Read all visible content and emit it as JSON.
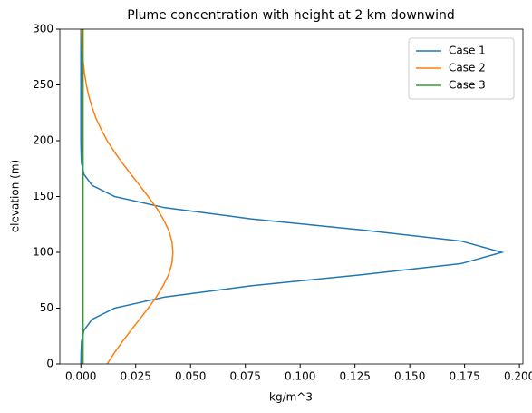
{
  "chart_data": {
    "type": "line",
    "title": "Plume concentration with height at 2 km downwind",
    "x_label": "kg/m^3",
    "y_label": "elevation (m)",
    "y": [
      0,
      10,
      20,
      30,
      40,
      50,
      60,
      70,
      80,
      90,
      100,
      110,
      120,
      130,
      140,
      150,
      160,
      170,
      180,
      190,
      200,
      210,
      220,
      230,
      240,
      250,
      260,
      270,
      280,
      290,
      300
    ],
    "series": [
      {
        "name": "Case 1",
        "color": "#1f77b4",
        "values": [
          0,
          0.0001,
          0.0003,
          0.0014,
          0.0051,
          0.0154,
          0.0383,
          0.0775,
          0.1283,
          0.1736,
          0.192,
          0.1736,
          0.1283,
          0.0775,
          0.0383,
          0.0154,
          0.0051,
          0.0014,
          0.0003,
          0.0001,
          0,
          0,
          0,
          0,
          0,
          0,
          0,
          0,
          0,
          0,
          0
        ]
      },
      {
        "name": "Case 2",
        "color": "#ff7f0e",
        "values": [
          0.012,
          0.0153,
          0.0189,
          0.0228,
          0.0268,
          0.0307,
          0.0344,
          0.0375,
          0.04,
          0.0415,
          0.042,
          0.0415,
          0.04,
          0.0375,
          0.0344,
          0.0307,
          0.0268,
          0.0228,
          0.0189,
          0.0153,
          0.012,
          0.0093,
          0.0069,
          0.0051,
          0.0036,
          0.0025,
          0.0017,
          0.0011,
          0.0007,
          0.0005,
          0.0003
        ]
      },
      {
        "name": "Case 3",
        "color": "#2ca02c",
        "values": [
          0.001,
          0.001,
          0.001,
          0.001,
          0.001,
          0.001,
          0.001,
          0.001,
          0.001,
          0.001,
          0.001,
          0.001,
          0.001,
          0.001,
          0.001,
          0.001,
          0.001,
          0.001,
          0.001,
          0.001,
          0.001,
          0.001,
          0.001,
          0.001,
          0.001,
          0.001,
          0.001,
          0.001,
          0.001,
          0.001,
          0.001
        ]
      }
    ],
    "xlim": [
      -0.0096,
      0.2016
    ],
    "xticks": [
      {
        "value": 0,
        "label": "0.000"
      },
      {
        "value": 0.025,
        "label": "0.025"
      },
      {
        "value": 0.05,
        "label": "0.050"
      },
      {
        "value": 0.075,
        "label": "0.075"
      },
      {
        "value": 0.1,
        "label": "0.100"
      },
      {
        "value": 0.125,
        "label": "0.125"
      },
      {
        "value": 0.15,
        "label": "0.150"
      },
      {
        "value": 0.175,
        "label": "0.175"
      },
      {
        "value": 0.2,
        "label": "0.200"
      }
    ],
    "ylim": [
      0,
      300
    ],
    "yticks": [
      0,
      50,
      100,
      150,
      200,
      250,
      300
    ],
    "grid": false,
    "legend": "upper right"
  }
}
